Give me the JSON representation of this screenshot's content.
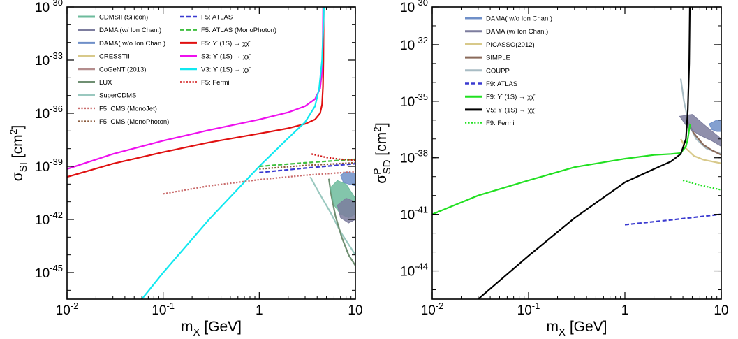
{
  "chart_data": [
    {
      "type": "line",
      "name": "spin-independent",
      "xscale": "log",
      "yscale": "log",
      "xlim": [
        0.01,
        10
      ],
      "ylim_exp": [
        -46.5,
        -30
      ],
      "xticks": [
        {
          "value": 0.01,
          "base": "10",
          "exp": "-2"
        },
        {
          "value": 0.1,
          "base": "10",
          "exp": "-1"
        },
        {
          "value": 1,
          "base": "1",
          "exp": ""
        },
        {
          "value": 10,
          "base": "10",
          "exp": ""
        }
      ],
      "yticks": [
        {
          "exp": -30,
          "base": "10",
          "sup": "-30"
        },
        {
          "exp": -33,
          "base": "10",
          "sup": "-33"
        },
        {
          "exp": -36,
          "base": "10",
          "sup": "-36"
        },
        {
          "exp": -39,
          "base": "10",
          "sup": "-39"
        },
        {
          "exp": -42,
          "base": "10",
          "sup": "-42"
        },
        {
          "exp": -45,
          "base": "10",
          "sup": "-45"
        }
      ],
      "xlabel": {
        "main": "m",
        "sub": "X",
        "unit": " [GeV]"
      },
      "ylabel": {
        "main": "σ",
        "sub": "SI",
        "unit_pre": " [cm",
        "unit_sup": "2",
        "unit_post": "]"
      },
      "legend_columns": [
        [
          {
            "label": "CDMSII (Silicon)",
            "color": "#6dbb9c",
            "style": "solid"
          },
          {
            "label": "DAMA (w/ Ion Chan.)",
            "color": "#7d7d9e",
            "style": "solid"
          },
          {
            "label": "DAMA( w/o Ion Chan.)",
            "color": "#6f8fc8",
            "style": "solid"
          },
          {
            "label": "CRESSTII",
            "color": "#d8c98a",
            "style": "solid"
          },
          {
            "label": "CoGeNT (2013)",
            "color": "#b48d8d",
            "style": "solid"
          },
          {
            "label": "LUX",
            "color": "#6f8f72",
            "style": "solid"
          },
          {
            "label": "SuperCDMS",
            "color": "#9ac8bf",
            "style": "solid"
          },
          {
            "label": "F5: CMS (MonoJet)",
            "color": "#c96a6a",
            "style": "dotted"
          },
          {
            "label": "F5: CMS (MonoPhoton)",
            "color": "#8a5a3c",
            "style": "dotted"
          }
        ],
        [
          {
            "label": "F5: ATLAS",
            "color": "#3a3ad0",
            "style": "dashed"
          },
          {
            "label": "F5: ATLAS (MonoPhoton)",
            "color": "#3fbf3f",
            "style": "dashed"
          },
          {
            "label": "F5: ϒ (1S) → χχ̄",
            "color": "#e01010",
            "style": "solid"
          },
          {
            "label": "S3: ϒ (1S) → χχ̄",
            "color": "#ee10ee",
            "style": "solid"
          },
          {
            "label": "V3: ϒ (1S) → χχ̄",
            "color": "#10e8f0",
            "style": "solid"
          },
          {
            "label": "F5: Fermi",
            "color": "#d01010",
            "style": "dotted"
          }
        ]
      ],
      "series": [
        {
          "name": "F5: ϒ (1S) → χχ̄",
          "color": "#e01010",
          "style": "solid",
          "points": [
            [
              0.01,
              -39.6
            ],
            [
              0.03,
              -38.85
            ],
            [
              0.1,
              -38.2
            ],
            [
              0.3,
              -37.65
            ],
            [
              1,
              -37.15
            ],
            [
              2,
              -36.85
            ],
            [
              3,
              -36.6
            ],
            [
              3.8,
              -36.35
            ],
            [
              4.3,
              -36.0
            ],
            [
              4.5,
              -35.5
            ],
            [
              4.6,
              -34.5
            ],
            [
              4.65,
              -33.0
            ],
            [
              4.68,
              -30.0
            ]
          ]
        },
        {
          "name": "S3: ϒ (1S) → χχ̄",
          "color": "#ee10ee",
          "style": "solid",
          "points": [
            [
              0.01,
              -39.15
            ],
            [
              0.03,
              -38.3
            ],
            [
              0.1,
              -37.55
            ],
            [
              0.3,
              -36.95
            ],
            [
              1,
              -36.35
            ],
            [
              2,
              -35.95
            ],
            [
              3,
              -35.6
            ],
            [
              3.8,
              -35.2
            ],
            [
              4.3,
              -34.6
            ],
            [
              4.5,
              -33.6
            ],
            [
              4.58,
              -32.0
            ],
            [
              4.62,
              -30.0
            ]
          ]
        },
        {
          "name": "V3: ϒ (1S) → χχ̄",
          "color": "#10e8f0",
          "style": "solid",
          "points": [
            [
              0.06,
              -46.5
            ],
            [
              0.1,
              -45.0
            ],
            [
              0.3,
              -42.0
            ],
            [
              1,
              -39.0
            ],
            [
              2,
              -37.4
            ],
            [
              3,
              -36.5
            ],
            [
              3.8,
              -35.6
            ],
            [
              4.2,
              -34.6
            ],
            [
              4.5,
              -33.0
            ],
            [
              4.65,
              -31.0
            ],
            [
              4.7,
              -30.0
            ]
          ]
        },
        {
          "name": "F5: CMS (MonoJet)",
          "color": "#c96a6a",
          "style": "dotted",
          "points": [
            [
              0.1,
              -40.55
            ],
            [
              0.3,
              -40.1
            ],
            [
              1,
              -39.75
            ],
            [
              3,
              -39.5
            ],
            [
              10,
              -39.3
            ]
          ]
        },
        {
          "name": "F5: CMS (MonoPhoton)",
          "color": "#8a5a3c",
          "style": "dotted",
          "points": [
            [
              1,
              -39.15
            ],
            [
              3,
              -38.95
            ],
            [
              10,
              -38.8
            ]
          ]
        },
        {
          "name": "F5: ATLAS",
          "color": "#3a3ad0",
          "style": "dashed",
          "points": [
            [
              1,
              -39.35
            ],
            [
              3,
              -39.1
            ],
            [
              10,
              -38.85
            ]
          ]
        },
        {
          "name": "F5: ATLAS (MonoPhoton)",
          "color": "#3fbf3f",
          "style": "dashed",
          "points": [
            [
              1,
              -39.0
            ],
            [
              3,
              -38.8
            ],
            [
              10,
              -38.6
            ]
          ]
        },
        {
          "name": "F5: Fermi",
          "color": "#d01010",
          "style": "dotted",
          "points": [
            [
              3.5,
              -38.3
            ],
            [
              5,
              -38.5
            ],
            [
              7,
              -38.6
            ],
            [
              10,
              -38.65
            ]
          ]
        }
      ],
      "regions": [
        {
          "name": "SuperCDMS",
          "color": "#9ac8bf",
          "style": "line",
          "points": [
            [
              3.4,
              -39.6
            ],
            [
              4.2,
              -40.5
            ],
            [
              5.5,
              -41.6
            ],
            [
              7,
              -42.7
            ],
            [
              10,
              -44.0
            ]
          ]
        },
        {
          "name": "LUX",
          "color": "#6f8f72",
          "style": "line",
          "points": [
            [
              5.3,
              -39.7
            ],
            [
              5.6,
              -40.6
            ],
            [
              6.2,
              -41.8
            ],
            [
              7.2,
              -43.0
            ],
            [
              8.5,
              -44.0
            ],
            [
              10,
              -44.6
            ]
          ]
        },
        {
          "name": "CDMSII (Silicon)",
          "color": "#6dbb9c",
          "style": "fill",
          "points": [
            [
              5.5,
              -40.2
            ],
            [
              6.5,
              -39.8
            ],
            [
              8,
              -40.0
            ],
            [
              10,
              -40.8
            ],
            [
              10,
              -41.7
            ],
            [
              8.5,
              -41.9
            ],
            [
              7,
              -41.7
            ],
            [
              6,
              -41.2
            ]
          ]
        },
        {
          "name": "DAMA (w/ Ion Chan.)",
          "color": "#7d7d9e",
          "style": "fill",
          "points": [
            [
              6.5,
              -41.2
            ],
            [
              8,
              -40.8
            ],
            [
              10,
              -41.0
            ],
            [
              10,
              -42.0
            ],
            [
              8.5,
              -42.2
            ],
            [
              7,
              -41.9
            ]
          ]
        },
        {
          "name": "DAMA( w/o Ion Chan.)",
          "color": "#6f8fc8",
          "style": "fill",
          "points": [
            [
              7,
              -39.5
            ],
            [
              8,
              -39.3
            ],
            [
              10,
              -39.4
            ],
            [
              10,
              -40.1
            ],
            [
              8.5,
              -40.0
            ],
            [
              7.5,
              -39.9
            ]
          ]
        }
      ]
    },
    {
      "type": "line",
      "name": "spin-dependent",
      "xscale": "log",
      "yscale": "log",
      "xlim": [
        0.01,
        10
      ],
      "ylim_exp": [
        -45.5,
        -30
      ],
      "xticks": [
        {
          "value": 0.01,
          "base": "10",
          "exp": "-2"
        },
        {
          "value": 0.1,
          "base": "10",
          "exp": "-1"
        },
        {
          "value": 1,
          "base": "1",
          "exp": ""
        },
        {
          "value": 10,
          "base": "10",
          "exp": ""
        }
      ],
      "yticks": [
        {
          "exp": -30,
          "base": "10",
          "sup": "-30"
        },
        {
          "exp": -32,
          "base": "10",
          "sup": "-32"
        },
        {
          "exp": -35,
          "base": "10",
          "sup": "-35"
        },
        {
          "exp": -38,
          "base": "10",
          "sup": "-38"
        },
        {
          "exp": -41,
          "base": "10",
          "sup": "-41"
        },
        {
          "exp": -44,
          "base": "10",
          "sup": "-44"
        }
      ],
      "xlabel": {
        "main": "m",
        "sub": "X",
        "unit": " [GeV]"
      },
      "ylabel": {
        "main": "σ",
        "sub": "SD",
        "sup": "P",
        "unit_pre": " [cm",
        "unit_sup": "2",
        "unit_post": "]"
      },
      "legend_columns": [
        [
          {
            "label": "DAMA( w/o Ion Chan.)",
            "color": "#6f8fc8",
            "style": "solid"
          },
          {
            "label": "DAMA (w/ Ion Chan.)",
            "color": "#7d7d9e",
            "style": "solid"
          },
          {
            "label": "PICASSO(2012)",
            "color": "#d8c98a",
            "style": "solid"
          },
          {
            "label": "SIMPLE",
            "color": "#8a6a5a",
            "style": "solid"
          },
          {
            "label": "COUPP",
            "color": "#a8bcc4",
            "style": "solid"
          },
          {
            "label": "F9: ATLAS",
            "color": "#3a3ad0",
            "style": "dashed"
          },
          {
            "label": "F9: ϒ (1S) → χχ̄",
            "color": "#20e020",
            "style": "solid"
          },
          {
            "label": "V5: ϒ (1S) → χχ̄",
            "color": "#000000",
            "style": "solid"
          },
          {
            "label": "F9: Fermi",
            "color": "#20e020",
            "style": "dotted"
          }
        ]
      ],
      "series": [
        {
          "name": "F9: ϒ (1S) → χχ̄",
          "color": "#20e020",
          "style": "solid",
          "points": [
            [
              0.01,
              -41.0
            ],
            [
              0.03,
              -40.0
            ],
            [
              0.1,
              -39.2
            ],
            [
              0.3,
              -38.5
            ],
            [
              1,
              -38.05
            ],
            [
              2,
              -37.85
            ],
            [
              3,
              -37.8
            ],
            [
              3.8,
              -37.75
            ],
            [
              4.3,
              -37.4
            ],
            [
              4.5,
              -37.0
            ],
            [
              4.65,
              -36.5
            ],
            [
              4.75,
              -36.2
            ]
          ]
        },
        {
          "name": "V5: ϒ (1S) → χχ̄",
          "color": "#000000",
          "style": "solid",
          "points": [
            [
              0.03,
              -45.5
            ],
            [
              0.1,
              -43.2
            ],
            [
              0.3,
              -41.2
            ],
            [
              1,
              -39.3
            ],
            [
              2,
              -38.6
            ],
            [
              3,
              -38.2
            ],
            [
              3.8,
              -37.8
            ],
            [
              4.3,
              -37.0
            ],
            [
              4.5,
              -35.5
            ],
            [
              4.65,
              -33.0
            ],
            [
              4.72,
              -30.0
            ]
          ]
        },
        {
          "name": "F9: ATLAS",
          "color": "#3a3ad0",
          "style": "dashed",
          "points": [
            [
              1,
              -41.55
            ],
            [
              3,
              -41.3
            ],
            [
              10,
              -41.0
            ]
          ]
        },
        {
          "name": "F9: Fermi",
          "color": "#20e020",
          "style": "dotted",
          "points": [
            [
              4,
              -39.2
            ],
            [
              6,
              -39.45
            ],
            [
              10,
              -39.7
            ]
          ]
        }
      ],
      "regions": [
        {
          "name": "COUPP",
          "color": "#a8bcc4",
          "style": "line",
          "points": [
            [
              3.8,
              -33.8
            ],
            [
              4.1,
              -35.0
            ],
            [
              4.6,
              -36.2
            ],
            [
              5.5,
              -37.0
            ],
            [
              7,
              -37.5
            ],
            [
              10,
              -37.8
            ]
          ]
        },
        {
          "name": "SIMPLE",
          "color": "#8a6a5a",
          "style": "line",
          "points": [
            [
              4.4,
              -36.0
            ],
            [
              5.2,
              -36.7
            ],
            [
              6.5,
              -37.3
            ],
            [
              8,
              -37.6
            ],
            [
              10,
              -37.85
            ]
          ]
        },
        {
          "name": "PICASSO(2012)",
          "color": "#d8c98a",
          "style": "line",
          "points": [
            [
              3.8,
              -37.0
            ],
            [
              4.3,
              -37.5
            ],
            [
              5.2,
              -37.9
            ],
            [
              6.5,
              -38.1
            ],
            [
              10,
              -38.3
            ]
          ]
        },
        {
          "name": "DAMA (w/ Ion Chan.)",
          "color": "#7d7d9e",
          "style": "fill",
          "points": [
            [
              3.7,
              -35.8
            ],
            [
              5,
              -35.7
            ],
            [
              6.5,
              -36.2
            ],
            [
              9,
              -36.8
            ],
            [
              10,
              -37.0
            ],
            [
              10,
              -37.4
            ],
            [
              8,
              -37.1
            ],
            [
              6,
              -36.8
            ],
            [
              4.5,
              -36.4
            ]
          ]
        },
        {
          "name": "DAMA( w/o Ion Chan.)",
          "color": "#6f8fc8",
          "style": "fill",
          "points": [
            [
              7.5,
              -36.2
            ],
            [
              9,
              -36.0
            ],
            [
              10,
              -36.0
            ],
            [
              10,
              -36.6
            ],
            [
              9,
              -36.6
            ],
            [
              8,
              -36.5
            ]
          ]
        }
      ]
    }
  ]
}
